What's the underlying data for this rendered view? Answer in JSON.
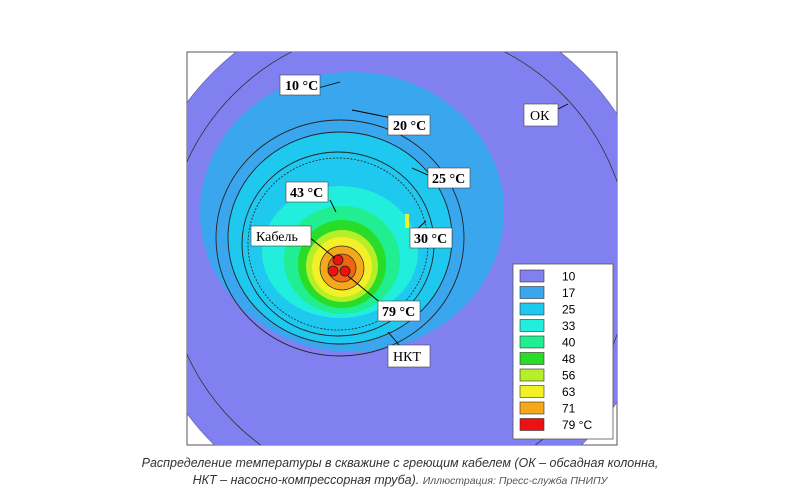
{
  "labels": {
    "t10": "10 °C",
    "t20": "20 °C",
    "t25": "25 °C",
    "t30": "30 °C",
    "t43": "43 °C",
    "t79": "79 °C",
    "cable": "Кабель",
    "ok": "ОК",
    "nkt": "НКТ"
  },
  "legend": {
    "entries": [
      {
        "value": "10",
        "color": "#8080f0"
      },
      {
        "value": "17",
        "color": "#3aa6ee"
      },
      {
        "value": "25",
        "color": "#1ec8ee"
      },
      {
        "value": "33",
        "color": "#22eedd"
      },
      {
        "value": "40",
        "color": "#20ee90"
      },
      {
        "value": "48",
        "color": "#28dc28"
      },
      {
        "value": "56",
        "color": "#b6ee28"
      },
      {
        "value": "63",
        "color": "#f4f028"
      },
      {
        "value": "71",
        "color": "#f4a81a"
      },
      {
        "value": "79 °C",
        "color": "#ee1111"
      }
    ]
  },
  "caption": {
    "line1": "Распределение температуры в скважине с греющим кабелем (ОК – обсадная колонна,",
    "line2": "НКТ – насосно-компрессорная труба).",
    "credit": "Иллюстрация: Пресс-служба ПНИПУ"
  }
}
